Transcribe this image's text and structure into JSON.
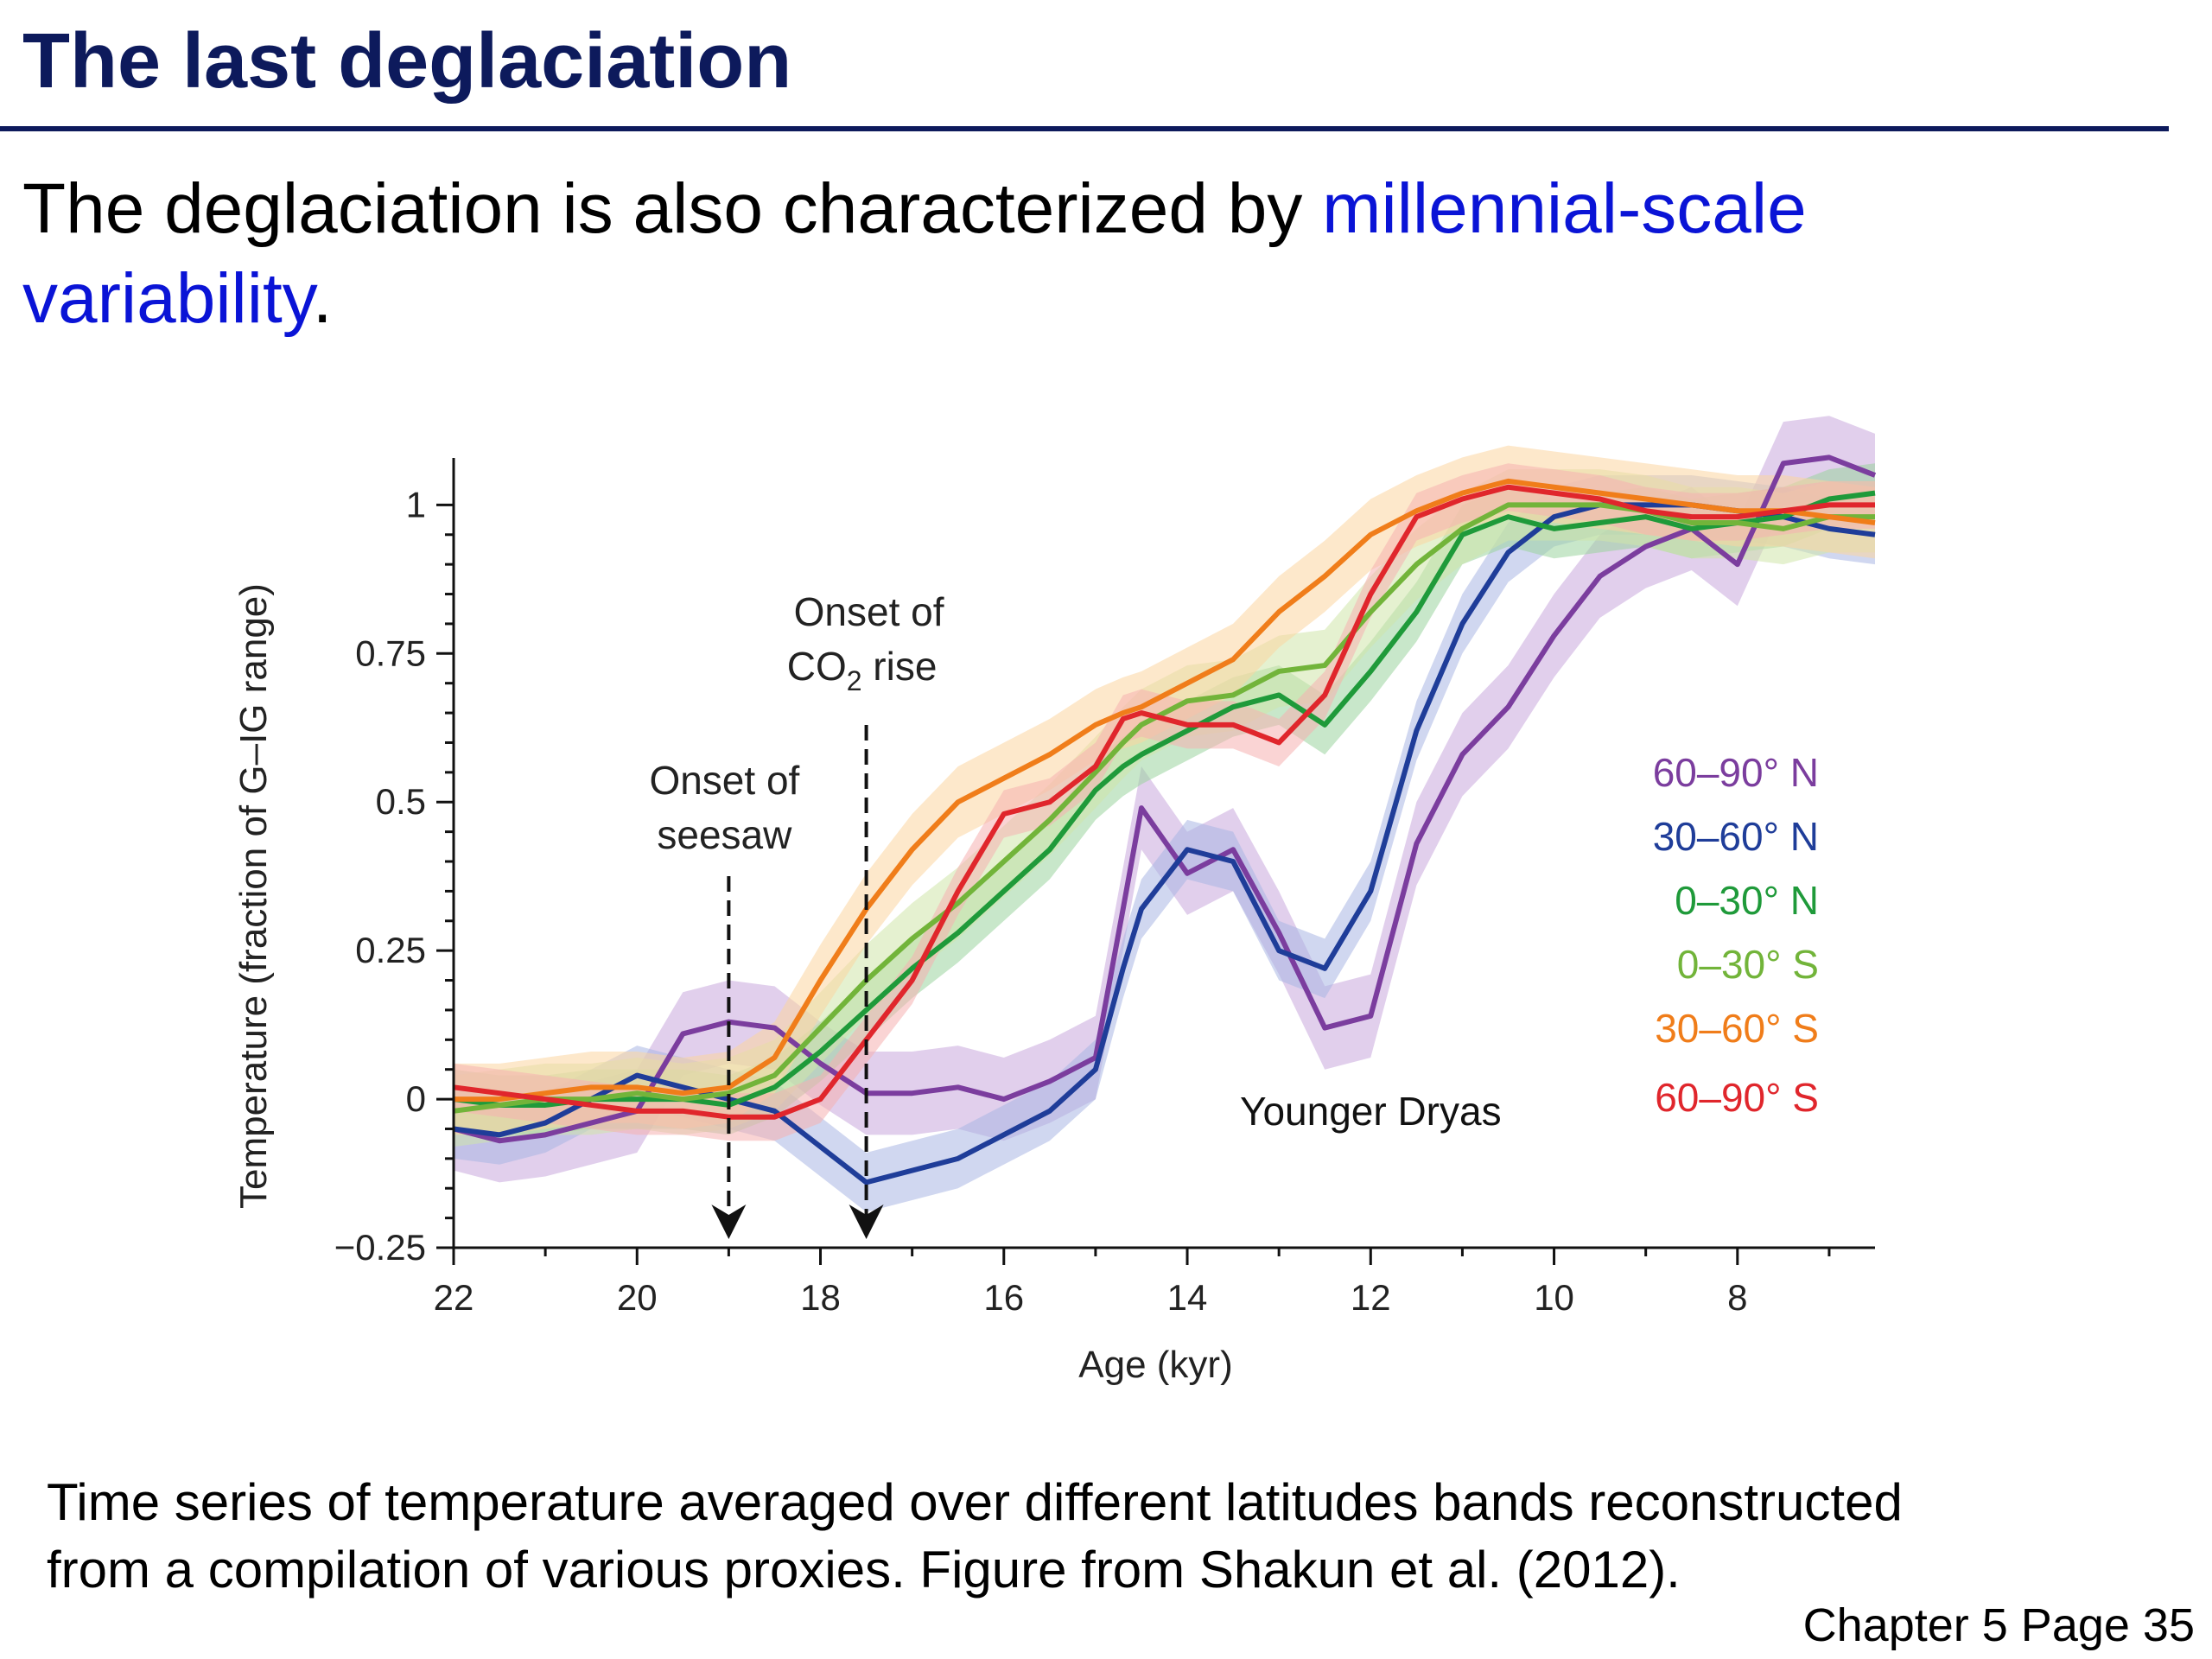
{
  "slide": {
    "title": "The last deglaciation",
    "intro_prefix": "The deglaciation is also characterized by ",
    "intro_highlight": "millennial-scale variability",
    "intro_suffix": ".",
    "caption_line1": "Time series of temperature averaged over different latitudes bands reconstructed",
    "caption_line2": "from a compilation of various proxies. Figure from Shakun et al. (2012).",
    "footer": "Chapter 5 Page 35",
    "colors": {
      "title": "#0d1a5c",
      "highlight": "#0a14d6"
    }
  },
  "chart_data": {
    "type": "line",
    "xlabel": "Age (kyr)",
    "ylabel": "Temperature (fraction of G–IG range)",
    "xlim": [
      22,
      6.5
    ],
    "ylim": [
      -0.25,
      1.05
    ],
    "x_reversed": true,
    "x_ticks": [
      22,
      20,
      18,
      16,
      14,
      12,
      10,
      8
    ],
    "x_tick_labels": [
      "22",
      "20",
      "18",
      "16",
      "14",
      "12",
      "10",
      "8"
    ],
    "y_ticks": [
      -0.25,
      0,
      0.25,
      0.5,
      0.75,
      1
    ],
    "y_tick_labels": [
      "−0.25",
      "0",
      "0.25",
      "0.5",
      "0.75",
      "1"
    ],
    "legend_position": "right-middle",
    "annotations": {
      "seesaw": {
        "line1": "Onset of",
        "line2": "seesaw",
        "x": 19.0
      },
      "co2": {
        "line1": "Onset of",
        "line2_main": "CO",
        "line2_sub": "2",
        "line2_rest": " rise",
        "x": 17.5
      },
      "younger_dryas": {
        "text": "Younger Dryas",
        "x": 12.0,
        "y": -0.02
      }
    },
    "x": [
      22,
      21.5,
      21,
      20.5,
      20,
      19.5,
      19,
      18.5,
      18,
      17.5,
      17,
      16.5,
      16,
      15.5,
      15,
      14.7,
      14.5,
      14,
      13.5,
      13,
      12.5,
      12,
      11.5,
      11,
      10.5,
      10,
      9.5,
      9,
      8.5,
      8,
      7.5,
      7,
      6.5
    ],
    "series": [
      {
        "name": "60–90° N",
        "color": "#7b3d9e",
        "band": "#c9a8dc",
        "band_width": 0.07,
        "values": [
          -0.05,
          -0.07,
          -0.06,
          -0.04,
          -0.02,
          0.11,
          0.13,
          0.12,
          0.06,
          0.01,
          0.01,
          0.02,
          0.0,
          0.03,
          0.07,
          0.32,
          0.49,
          0.38,
          0.42,
          0.28,
          0.12,
          0.14,
          0.43,
          0.58,
          0.66,
          0.78,
          0.88,
          0.93,
          0.96,
          0.9,
          1.07,
          1.08,
          1.05
        ]
      },
      {
        "name": "30–60° N",
        "color": "#1f3d99",
        "band": "#a9b6e4",
        "band_width": 0.05,
        "values": [
          -0.05,
          -0.06,
          -0.04,
          0.0,
          0.04,
          0.02,
          0.0,
          -0.02,
          -0.08,
          -0.14,
          -0.12,
          -0.1,
          -0.06,
          -0.02,
          0.05,
          0.22,
          0.32,
          0.42,
          0.4,
          0.25,
          0.22,
          0.35,
          0.62,
          0.8,
          0.92,
          0.98,
          1.0,
          1.0,
          1.0,
          0.99,
          0.98,
          0.96,
          0.95
        ]
      },
      {
        "name": "0–30° N",
        "color": "#1f9a3a",
        "band": "#9ad49e",
        "band_width": 0.05,
        "values": [
          0.0,
          -0.01,
          -0.01,
          0.0,
          0.0,
          0.0,
          -0.01,
          0.02,
          0.08,
          0.15,
          0.22,
          0.28,
          0.35,
          0.42,
          0.52,
          0.56,
          0.58,
          0.62,
          0.66,
          0.68,
          0.63,
          0.72,
          0.82,
          0.95,
          0.98,
          0.96,
          0.97,
          0.98,
          0.96,
          0.97,
          0.98,
          1.01,
          1.02
        ]
      },
      {
        "name": "0–30° S",
        "color": "#72b43a",
        "band": "#cfe6aa",
        "band_width": 0.06,
        "values": [
          -0.02,
          -0.01,
          0.0,
          0.0,
          0.01,
          0.0,
          0.01,
          0.04,
          0.12,
          0.2,
          0.27,
          0.33,
          0.4,
          0.47,
          0.55,
          0.6,
          0.63,
          0.67,
          0.68,
          0.72,
          0.73,
          0.82,
          0.9,
          0.96,
          1.0,
          1.0,
          1.0,
          0.99,
          0.97,
          0.97,
          0.96,
          0.98,
          0.98
        ]
      },
      {
        "name": "30–60° S",
        "color": "#f07d1a",
        "band": "#fbd5a0",
        "band_width": 0.06,
        "values": [
          0.0,
          0.0,
          0.01,
          0.02,
          0.02,
          0.01,
          0.02,
          0.07,
          0.2,
          0.32,
          0.42,
          0.5,
          0.54,
          0.58,
          0.63,
          0.65,
          0.66,
          0.7,
          0.74,
          0.82,
          0.88,
          0.95,
          0.99,
          1.02,
          1.04,
          1.03,
          1.02,
          1.01,
          1.0,
          0.99,
          0.99,
          0.98,
          0.97
        ]
      },
      {
        "name": "60–90° S",
        "color": "#e0262c",
        "band": "#f6b0b0",
        "band_width": 0.04,
        "values": [
          0.02,
          0.01,
          0.0,
          -0.01,
          -0.02,
          -0.02,
          -0.03,
          -0.03,
          0.0,
          0.1,
          0.2,
          0.35,
          0.48,
          0.5,
          0.56,
          0.64,
          0.65,
          0.63,
          0.63,
          0.6,
          0.68,
          0.85,
          0.98,
          1.01,
          1.03,
          1.02,
          1.01,
          0.99,
          0.98,
          0.98,
          0.99,
          1.0,
          1.0
        ]
      }
    ]
  }
}
